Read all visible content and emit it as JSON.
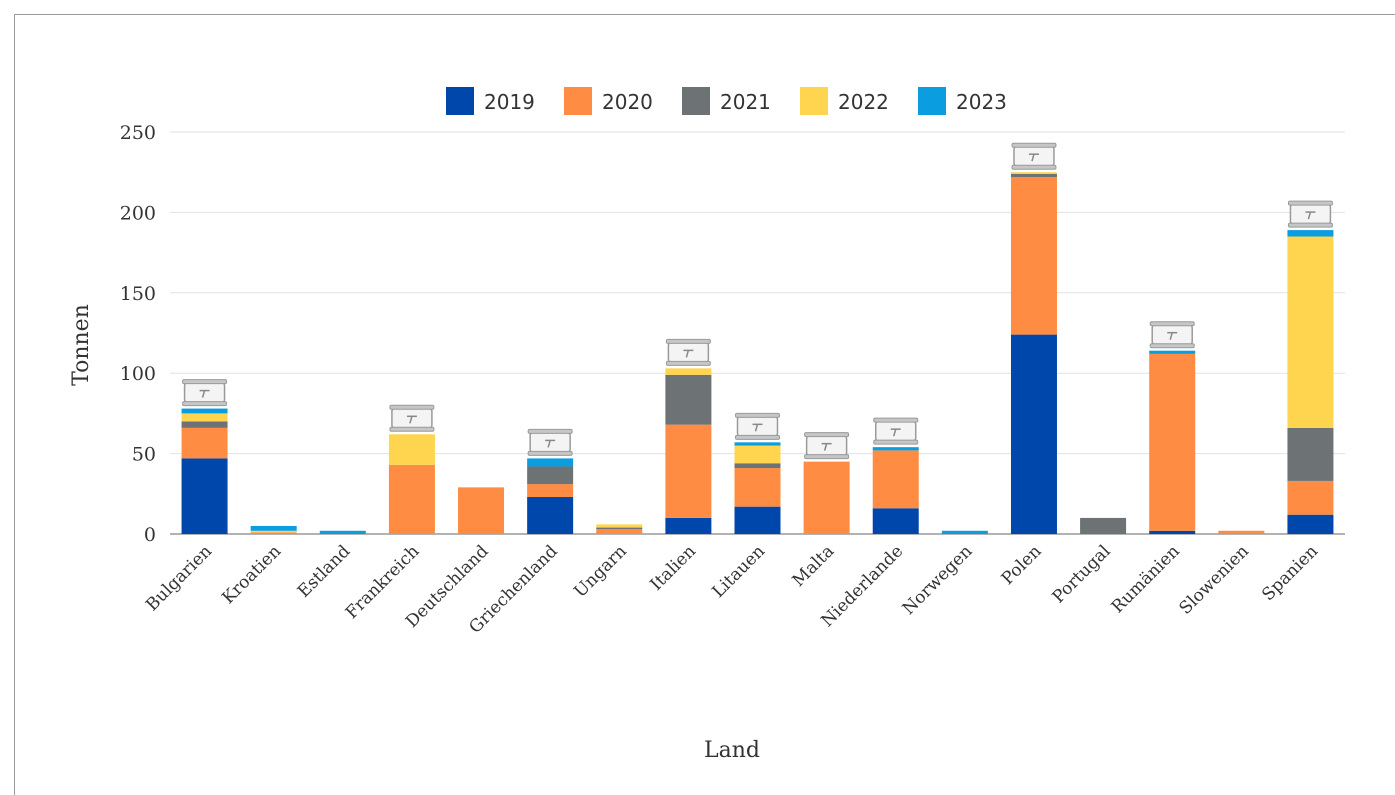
{
  "chart_data": {
    "type": "bar",
    "stacked": true,
    "xlabel": "Land",
    "ylabel": "Tonnen",
    "ylim": [
      0,
      250
    ],
    "yticks": [
      0,
      50,
      100,
      150,
      200,
      250
    ],
    "grid": true,
    "legend_position": "top-center",
    "categories": [
      "Bulgarien",
      "Kroatien",
      "Estland",
      "Frankreich",
      "Deutschland",
      "Griechenland",
      "Ungarn",
      "Italien",
      "Litauen",
      "Malta",
      "Niederlande",
      "Norwegen",
      "Polen",
      "Portugal",
      "Rumänien",
      "Slowenien",
      "Spanien"
    ],
    "series": [
      {
        "name": "2019",
        "color": "#0047AB",
        "values": [
          47,
          0,
          0,
          0,
          0,
          23,
          0,
          10,
          17,
          0,
          16,
          0,
          124,
          0,
          2,
          0,
          12
        ]
      },
      {
        "name": "2020",
        "color": "#FF8C42",
        "values": [
          19,
          1,
          0,
          43,
          29,
          8,
          3,
          58,
          24,
          45,
          36,
          0,
          98,
          0,
          110,
          2,
          21
        ]
      },
      {
        "name": "2021",
        "color": "#6D7275",
        "values": [
          4,
          0,
          0,
          0,
          0,
          11,
          1,
          31,
          3,
          0,
          0,
          0,
          2,
          10,
          0,
          0,
          33
        ]
      },
      {
        "name": "2022",
        "color": "#FFD54F",
        "values": [
          5,
          1,
          0,
          19,
          0,
          0,
          2,
          4,
          11,
          0,
          0,
          0,
          1,
          0,
          0,
          0,
          119
        ]
      },
      {
        "name": "2023",
        "color": "#0A9DE0",
        "values": [
          3,
          3,
          2,
          0,
          0,
          5,
          0,
          0,
          2,
          0,
          2,
          2,
          0,
          0,
          2,
          0,
          4
        ]
      }
    ],
    "annotated_categories": [
      "Bulgarien",
      "Frankreich",
      "Griechenland",
      "Italien",
      "Litauen",
      "Malta",
      "Niederlande",
      "Polen",
      "Rumänien",
      "Spanien"
    ],
    "annotation_icon": "container-icon"
  }
}
